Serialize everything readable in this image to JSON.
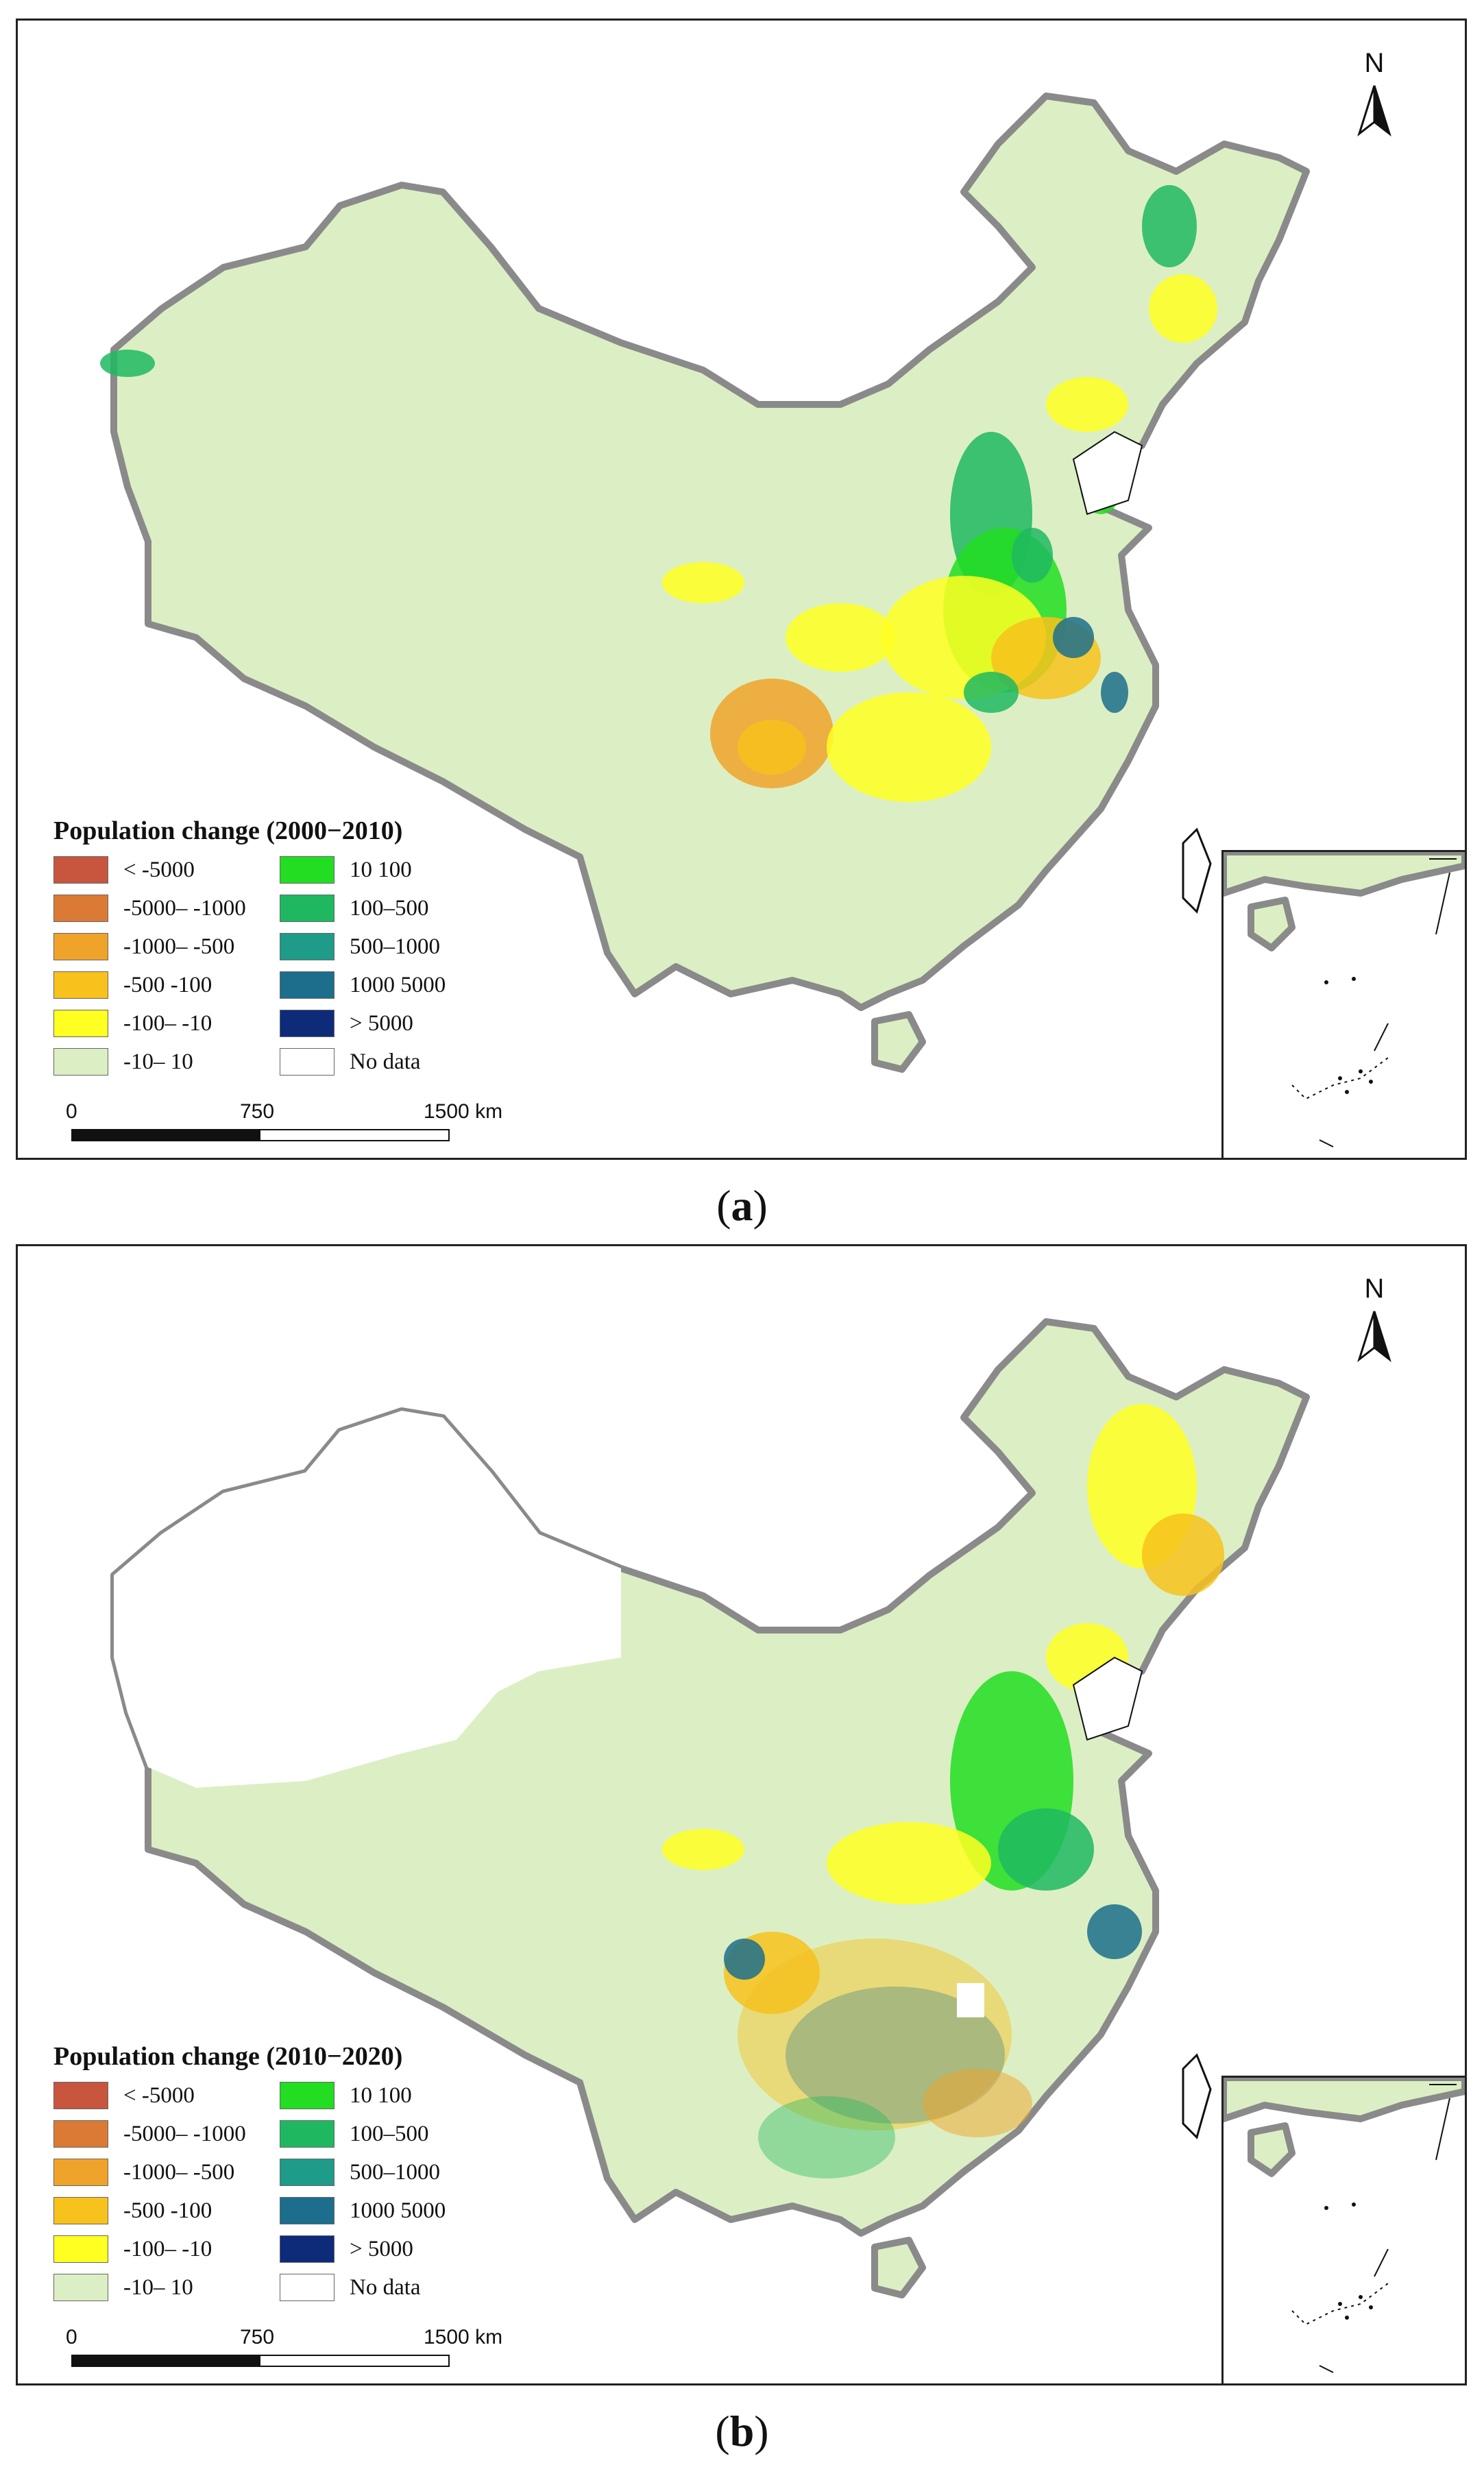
{
  "panels": [
    {
      "id": "a",
      "legend_title": "Population change (2000−2010)",
      "caption_letter": "a"
    },
    {
      "id": "b",
      "legend_title": "Population change (2010−2020)",
      "caption_letter": "b"
    }
  ],
  "north_arrow": "N",
  "legend": [
    {
      "label": "< -5000",
      "color": "#c8553d"
    },
    {
      "label": "10  100",
      "color": "#22dd22"
    },
    {
      "label": "-5000– -1000",
      "color": "#db7a35"
    },
    {
      "label": "100–500",
      "color": "#1fb860"
    },
    {
      "label": "-1000– -500",
      "color": "#f0a32a"
    },
    {
      "label": "500–1000",
      "color": "#1f9b8a"
    },
    {
      "label": "-500  -100",
      "color": "#f7c21c"
    },
    {
      "label": "1000  5000",
      "color": "#1c6e8c"
    },
    {
      "label": "-100– -10",
      "color": "#ffff22"
    },
    {
      "label": "> 5000",
      "color": "#0e2b7a"
    },
    {
      "label": "-10– 10",
      "color": "#dcefc4"
    },
    {
      "label": "No data",
      "color": "#ffffff"
    }
  ],
  "scale": {
    "ticks": [
      "0",
      "750",
      "1500"
    ],
    "unit": "km"
  },
  "map_colors": {
    "land": "#dcefc4",
    "border": "#8a8a8a",
    "water": "#ffffff"
  }
}
